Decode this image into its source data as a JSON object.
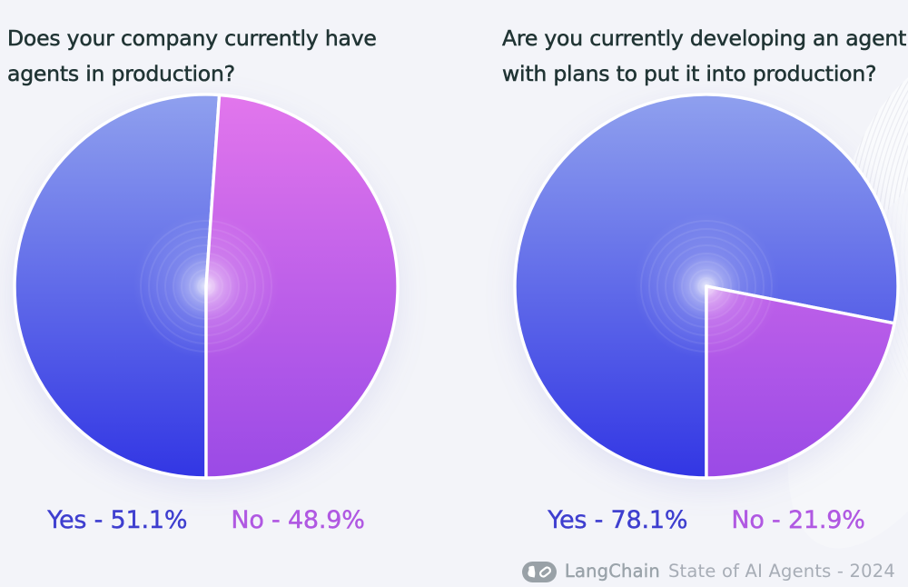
{
  "chart_data": [
    {
      "type": "pie",
      "title": "Does your company currently have agents in production?",
      "title_lines": [
        "Does your company currently have",
        "agents in production?"
      ],
      "start_angle_deg": 180,
      "direction": "clockwise",
      "legend_position": "bottom",
      "slices": [
        {
          "label": "Yes",
          "value": 51.1,
          "display": "Yes - 51.1%",
          "color": "blue"
        },
        {
          "label": "No",
          "value": 48.9,
          "display": "No - 48.9%",
          "color": "purple"
        }
      ]
    },
    {
      "type": "pie",
      "title": "Are you currently developing an agent with plans to put it into production?",
      "title_lines": [
        "Are you currently developing an agent",
        "with plans to put it into production?"
      ],
      "start_angle_deg": 180,
      "direction": "clockwise",
      "legend_position": "bottom",
      "slices": [
        {
          "label": "Yes",
          "value": 78.1,
          "display": "Yes - 78.1%",
          "color": "blue"
        },
        {
          "label": "No",
          "value": 21.9,
          "display": "No - 21.9%",
          "color": "purple"
        }
      ]
    }
  ],
  "theme": {
    "background": "#f3f4f9",
    "title_color": "#203434",
    "yes_label_color": "#3e3ecf",
    "no_label_color": "#b058e2",
    "divider_color": "#ffffff",
    "slice_gradients": {
      "blue": [
        "#8fa0ee",
        "#3236e4"
      ],
      "purple": [
        "#e276ec",
        "#9a4ae6"
      ]
    }
  },
  "footer": {
    "brand": "LangChain",
    "caption": "State of AI Agents - 2024",
    "badge_color": "#99a1a7",
    "brand_color": "#9aa3aa",
    "caption_color": "#a7adb6"
  }
}
